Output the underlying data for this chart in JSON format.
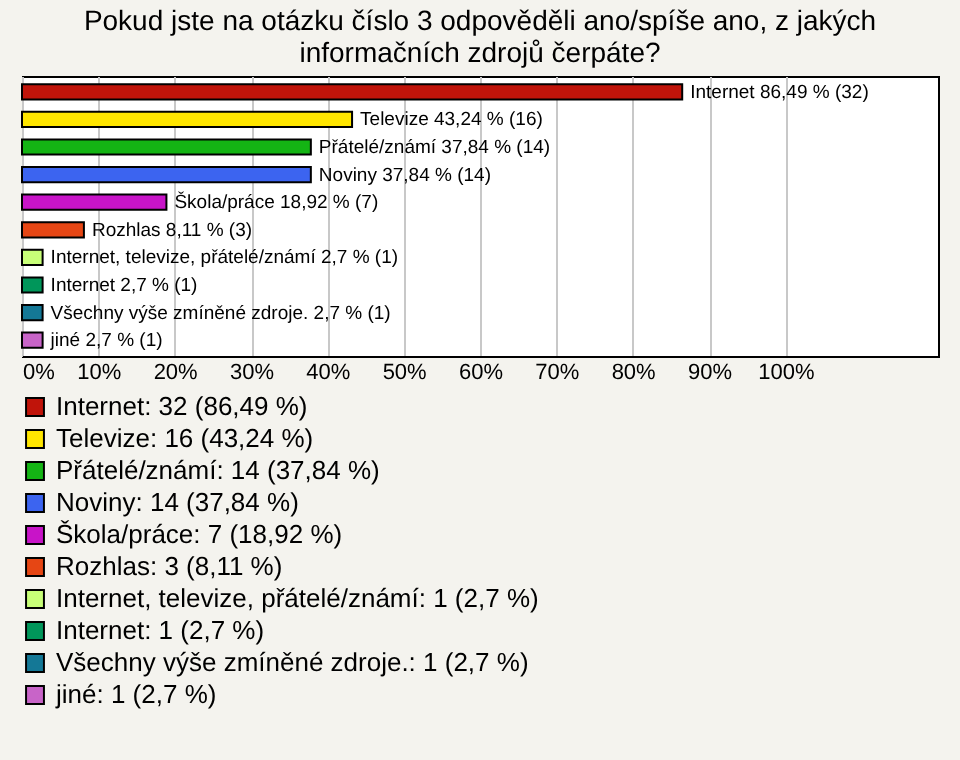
{
  "chart_data": {
    "type": "bar",
    "orientation": "horizontal",
    "title": "Pokud jste na otázku číslo 3 odpověděli ano/spíše ano, z jakých\ninformačních zdrojů čerpáte?",
    "categories": [
      null,
      null,
      null,
      null,
      null,
      null,
      null,
      null,
      null,
      null
    ],
    "series": [
      {
        "name": "Internet: 32 (86,49 %)",
        "color": "#c0140a",
        "values": [
          86.49,
          null,
          null,
          null,
          null,
          null,
          null,
          null,
          null,
          null
        ],
        "value_labels": [
          "Internet 86,49 % (32)",
          null,
          null,
          null,
          null,
          null,
          null,
          null,
          null,
          null
        ]
      },
      {
        "name": "Televize: 16 (43,24 %)",
        "color": "#ffe600",
        "values": [
          null,
          43.24,
          null,
          null,
          null,
          null,
          null,
          null,
          null,
          null
        ],
        "value_labels": [
          null,
          "Televize 43,24 % (16)",
          null,
          null,
          null,
          null,
          null,
          null,
          null,
          null
        ]
      },
      {
        "name": "Přátelé/známí: 14 (37,84 %)",
        "color": "#14b414",
        "values": [
          null,
          null,
          37.84,
          null,
          null,
          null,
          null,
          null,
          null,
          null
        ],
        "value_labels": [
          null,
          null,
          "Přátelé/známí 37,84 % (14)",
          null,
          null,
          null,
          null,
          null,
          null,
          null
        ]
      },
      {
        "name": "Noviny: 14 (37,84 %)",
        "color": "#3c64f0",
        "values": [
          null,
          null,
          null,
          37.84,
          null,
          null,
          null,
          null,
          null,
          null
        ],
        "value_labels": [
          null,
          null,
          null,
          "Noviny 37,84 % (14)",
          null,
          null,
          null,
          null,
          null,
          null
        ]
      },
      {
        "name": "Škola/práce: 7 (18,92 %)",
        "color": "#c814c8",
        "values": [
          null,
          null,
          null,
          null,
          18.92,
          null,
          null,
          null,
          null,
          null
        ],
        "value_labels": [
          null,
          null,
          null,
          null,
          "Škola/práce 18,92 % (7)",
          null,
          null,
          null,
          null,
          null
        ]
      },
      {
        "name": "Rozhlas: 3 (8,11 %)",
        "color": "#e64614",
        "values": [
          null,
          null,
          null,
          null,
          null,
          8.11,
          null,
          null,
          null,
          null
        ],
        "value_labels": [
          null,
          null,
          null,
          null,
          null,
          "Rozhlas 8,11 % (3)",
          null,
          null,
          null,
          null
        ]
      },
      {
        "name": "Internet, televize, přátelé/známí: 1 (2,7 %)",
        "color": "#c8ff78",
        "values": [
          null,
          null,
          null,
          null,
          null,
          null,
          2.7,
          null,
          null,
          null
        ],
        "value_labels": [
          null,
          null,
          null,
          null,
          null,
          null,
          "Internet, televize, přátelé/známí 2,7 % (1)",
          null,
          null,
          null
        ]
      },
      {
        "name": "Internet: 1 (2,7 %)",
        "color": "#00965a",
        "values": [
          null,
          null,
          null,
          null,
          null,
          null,
          null,
          2.7,
          null,
          null
        ],
        "value_labels": [
          null,
          null,
          null,
          null,
          null,
          null,
          null,
          "Internet 2,7 % (1)",
          null,
          null
        ]
      },
      {
        "name": "Všechny výše zmíněné zdroje.: 1 (2,7 %)",
        "color": "#147896",
        "values": [
          null,
          null,
          null,
          null,
          null,
          null,
          null,
          null,
          2.7,
          null
        ],
        "value_labels": [
          null,
          null,
          null,
          null,
          null,
          null,
          null,
          null,
          "Všechny výše zmíněné zdroje. 2,7 % (1)",
          null
        ]
      },
      {
        "name": "jiné: 1 (2,7 %)",
        "color": "#c864c8",
        "values": [
          null,
          null,
          null,
          null,
          null,
          null,
          null,
          null,
          null,
          2.7
        ],
        "value_labels": [
          null,
          null,
          null,
          null,
          null,
          null,
          null,
          null,
          null,
          "jiné 2,7 % (1)"
        ]
      }
    ],
    "xlim": [
      0,
      120
    ],
    "xticks": [
      {
        "value": 0,
        "label": "0%"
      },
      {
        "value": 10,
        "label": "10%"
      },
      {
        "value": 20,
        "label": "20%"
      },
      {
        "value": 30,
        "label": "30%"
      },
      {
        "value": 40,
        "label": "40%"
      },
      {
        "value": 50,
        "label": "50%"
      },
      {
        "value": 60,
        "label": "60%"
      },
      {
        "value": 70,
        "label": "70%"
      },
      {
        "value": 80,
        "label": "80%"
      },
      {
        "value": 90,
        "label": "90%"
      },
      {
        "value": 100,
        "label": "100%"
      }
    ],
    "grid": "x",
    "legend": "bottom",
    "tick_labels": "x"
  }
}
